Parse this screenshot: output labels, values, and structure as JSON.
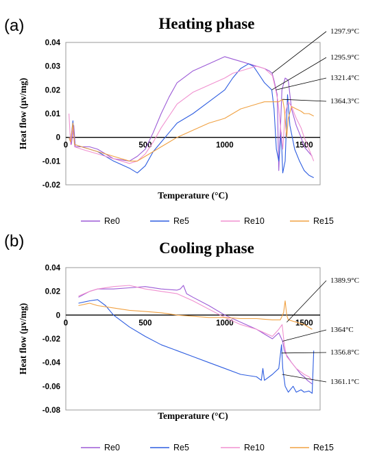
{
  "chart_data": [
    {
      "type": "line",
      "panel": "(a)",
      "title": "Heating phase",
      "xlabel": "Temperature (°C)",
      "ylabel": "Heat flow (μv/mg)",
      "xlim": [
        0,
        1600
      ],
      "ylim": [
        -0.02,
        0.04
      ],
      "xticks": [
        0,
        500,
        1000,
        1500
      ],
      "yticks": [
        -0.02,
        -0.01,
        0,
        0.01,
        0.02,
        0.03,
        0.04
      ],
      "ytick_labels": [
        "-0.02",
        "-0.01",
        "0",
        "0.01",
        "0.02",
        "0.03",
        "0.04"
      ],
      "grid": false,
      "legend_position": "bottom",
      "series": [
        {
          "name": "Re0",
          "color": "#9b59d6",
          "x": [
            20,
            35,
            50,
            60,
            100,
            150,
            200,
            300,
            400,
            450,
            500,
            550,
            600,
            650,
            700,
            800,
            900,
            1000,
            1050,
            1100,
            1150,
            1200,
            1250,
            1280,
            1298,
            1310,
            1330,
            1340,
            1360,
            1380,
            1400,
            1420,
            1450,
            1480,
            1500,
            1550
          ],
          "y": [
            0.0,
            -0.003,
            0.005,
            -0.004,
            -0.004,
            -0.004,
            -0.005,
            -0.009,
            -0.01,
            -0.008,
            -0.005,
            0.002,
            0.01,
            0.017,
            0.023,
            0.028,
            0.031,
            0.034,
            0.033,
            0.032,
            0.031,
            0.03,
            0.029,
            0.028,
            0.027,
            0.024,
            0.018,
            -0.014,
            0.02,
            0.025,
            0.024,
            0.012,
            0.005,
            0.0,
            -0.004,
            -0.008
          ]
        },
        {
          "name": "Re5",
          "color": "#2c5ce0",
          "x": [
            20,
            30,
            45,
            55,
            100,
            150,
            200,
            300,
            400,
            450,
            500,
            550,
            600,
            650,
            700,
            800,
            900,
            1000,
            1050,
            1100,
            1150,
            1180,
            1200,
            1250,
            1296,
            1310,
            1325,
            1340,
            1355,
            1365,
            1380,
            1395,
            1410,
            1440,
            1470,
            1500,
            1530,
            1560
          ],
          "y": [
            0.0,
            -0.002,
            0.007,
            -0.003,
            -0.004,
            -0.005,
            -0.006,
            -0.01,
            -0.013,
            -0.015,
            -0.012,
            -0.006,
            -0.002,
            0.002,
            0.006,
            0.01,
            0.015,
            0.02,
            0.025,
            0.029,
            0.031,
            0.03,
            0.028,
            0.023,
            0.02,
            0.012,
            -0.005,
            -0.01,
            0.002,
            -0.015,
            -0.01,
            0.018,
            0.005,
            -0.005,
            -0.01,
            -0.014,
            -0.016,
            -0.017
          ]
        },
        {
          "name": "Re10",
          "color": "#f08fcf",
          "x": [
            20,
            30,
            45,
            55,
            100,
            150,
            200,
            300,
            400,
            450,
            500,
            550,
            600,
            650,
            700,
            800,
            900,
            1000,
            1050,
            1100,
            1150,
            1200,
            1250,
            1300,
            1321,
            1335,
            1350,
            1365,
            1380,
            1400,
            1420,
            1450,
            1480,
            1500,
            1530,
            1560
          ],
          "y": [
            0.01,
            -0.003,
            0.005,
            -0.004,
            -0.005,
            -0.006,
            -0.007,
            -0.009,
            -0.011,
            -0.01,
            -0.007,
            -0.002,
            0.004,
            0.009,
            0.014,
            0.019,
            0.022,
            0.025,
            0.027,
            0.028,
            0.029,
            0.03,
            0.029,
            0.026,
            0.02,
            0.015,
            0.005,
            -0.005,
            0.01,
            0.015,
            0.013,
            0.008,
            0.004,
            0.0,
            -0.005,
            -0.01
          ]
        },
        {
          "name": "Re15",
          "color": "#f0a040",
          "x": [
            20,
            30,
            45,
            55,
            100,
            150,
            200,
            300,
            400,
            450,
            500,
            550,
            600,
            650,
            700,
            800,
            900,
            1000,
            1050,
            1100,
            1150,
            1200,
            1250,
            1300,
            1340,
            1364,
            1375,
            1390,
            1400,
            1420,
            1450,
            1480,
            1500,
            1530,
            1560
          ],
          "y": [
            0.0,
            -0.002,
            0.006,
            -0.003,
            -0.004,
            -0.005,
            -0.006,
            -0.008,
            -0.01,
            -0.01,
            -0.008,
            -0.006,
            -0.004,
            -0.002,
            0.0,
            0.003,
            0.006,
            0.008,
            0.01,
            0.012,
            0.013,
            0.014,
            0.015,
            0.015,
            0.015,
            0.016,
            0.012,
            0.0,
            0.008,
            0.013,
            0.012,
            0.011,
            0.01,
            0.01,
            0.009
          ]
        }
      ],
      "annotations": [
        {
          "text": "1297.9°C",
          "x": 1298,
          "y": 0.027
        },
        {
          "text": "1295.9°C",
          "x": 1296,
          "y": 0.02
        },
        {
          "text": "1321.4°C",
          "x": 1321,
          "y": 0.02
        },
        {
          "text": "1364.3°C",
          "x": 1364,
          "y": 0.016
        }
      ]
    },
    {
      "type": "line",
      "panel": "(b)",
      "title": "Cooling phase",
      "xlabel": "Temperature (°C)",
      "ylabel": "Heat flow (μv/mg)",
      "xlim": [
        0,
        1600
      ],
      "ylim": [
        -0.08,
        0.04
      ],
      "xticks": [
        0,
        500,
        1000,
        1500
      ],
      "yticks": [
        -0.08,
        -0.06,
        -0.04,
        -0.02,
        0,
        0.02,
        0.04
      ],
      "ytick_labels": [
        "-0.08",
        "-0.06",
        "-0.04",
        "-0.02",
        "0",
        "0.02",
        "0.04"
      ],
      "grid": false,
      "legend_position": "bottom",
      "series": [
        {
          "name": "Re0",
          "color": "#9b59d6",
          "x": [
            80,
            150,
            200,
            300,
            400,
            500,
            600,
            700,
            720,
            740,
            760,
            800,
            900,
            1000,
            1100,
            1200,
            1250,
            1300,
            1340,
            1364,
            1375,
            1390,
            1420,
            1450,
            1480,
            1500,
            1520,
            1550
          ],
          "y": [
            0.015,
            0.02,
            0.022,
            0.022,
            0.023,
            0.024,
            0.022,
            0.021,
            0.022,
            0.025,
            0.018,
            0.015,
            0.008,
            0.0,
            -0.006,
            -0.012,
            -0.016,
            -0.02,
            -0.015,
            -0.022,
            -0.03,
            -0.034,
            -0.04,
            -0.045,
            -0.05,
            -0.052,
            -0.055,
            -0.058
          ]
        },
        {
          "name": "Re5",
          "color": "#2c5ce0",
          "x": [
            80,
            150,
            200,
            250,
            300,
            400,
            500,
            600,
            700,
            800,
            900,
            1000,
            1100,
            1200,
            1230,
            1240,
            1250,
            1300,
            1340,
            1357,
            1365,
            1380,
            1400,
            1430,
            1450,
            1480,
            1500,
            1530,
            1550,
            1560
          ],
          "y": [
            0.01,
            0.012,
            0.013,
            0.008,
            0.0,
            -0.01,
            -0.018,
            -0.025,
            -0.03,
            -0.035,
            -0.04,
            -0.045,
            -0.05,
            -0.052,
            -0.055,
            -0.045,
            -0.055,
            -0.05,
            -0.045,
            -0.025,
            -0.045,
            -0.06,
            -0.065,
            -0.06,
            -0.065,
            -0.063,
            -0.065,
            -0.064,
            -0.066,
            -0.03
          ]
        },
        {
          "name": "Re10",
          "color": "#f08fcf",
          "x": [
            80,
            150,
            200,
            300,
            400,
            500,
            600,
            700,
            800,
            900,
            1000,
            1100,
            1200,
            1300,
            1340,
            1361,
            1375,
            1390,
            1420,
            1450,
            1480,
            1500,
            1530,
            1550
          ],
          "y": [
            0.016,
            0.02,
            0.022,
            0.024,
            0.025,
            0.022,
            0.02,
            0.018,
            0.012,
            0.005,
            -0.002,
            -0.008,
            -0.012,
            -0.018,
            -0.012,
            -0.008,
            -0.025,
            -0.035,
            -0.04,
            -0.045,
            -0.048,
            -0.05,
            -0.052,
            -0.055
          ]
        },
        {
          "name": "Re15",
          "color": "#f0a040",
          "x": [
            80,
            150,
            200,
            300,
            400,
            500,
            600,
            700,
            800,
            900,
            1000,
            1100,
            1200,
            1300,
            1350,
            1370,
            1380,
            1390,
            1400,
            1450,
            1500,
            1550
          ],
          "y": [
            0.008,
            0.01,
            0.008,
            0.006,
            0.004,
            0.003,
            0.002,
            0.0,
            -0.001,
            -0.002,
            -0.002,
            -0.003,
            -0.003,
            -0.004,
            -0.004,
            0.002,
            0.012,
            0.0,
            -0.004,
            -0.006,
            -0.008,
            -0.012
          ]
        }
      ],
      "annotations": [
        {
          "text": "1389.9°C",
          "x": 1390,
          "y": -0.006
        },
        {
          "text": "1364°C",
          "x": 1364,
          "y": -0.022
        },
        {
          "text": "1356.8°C",
          "x": 1357,
          "y": -0.032
        },
        {
          "text": "1361.1°C",
          "x": 1361,
          "y": -0.05
        }
      ]
    }
  ]
}
